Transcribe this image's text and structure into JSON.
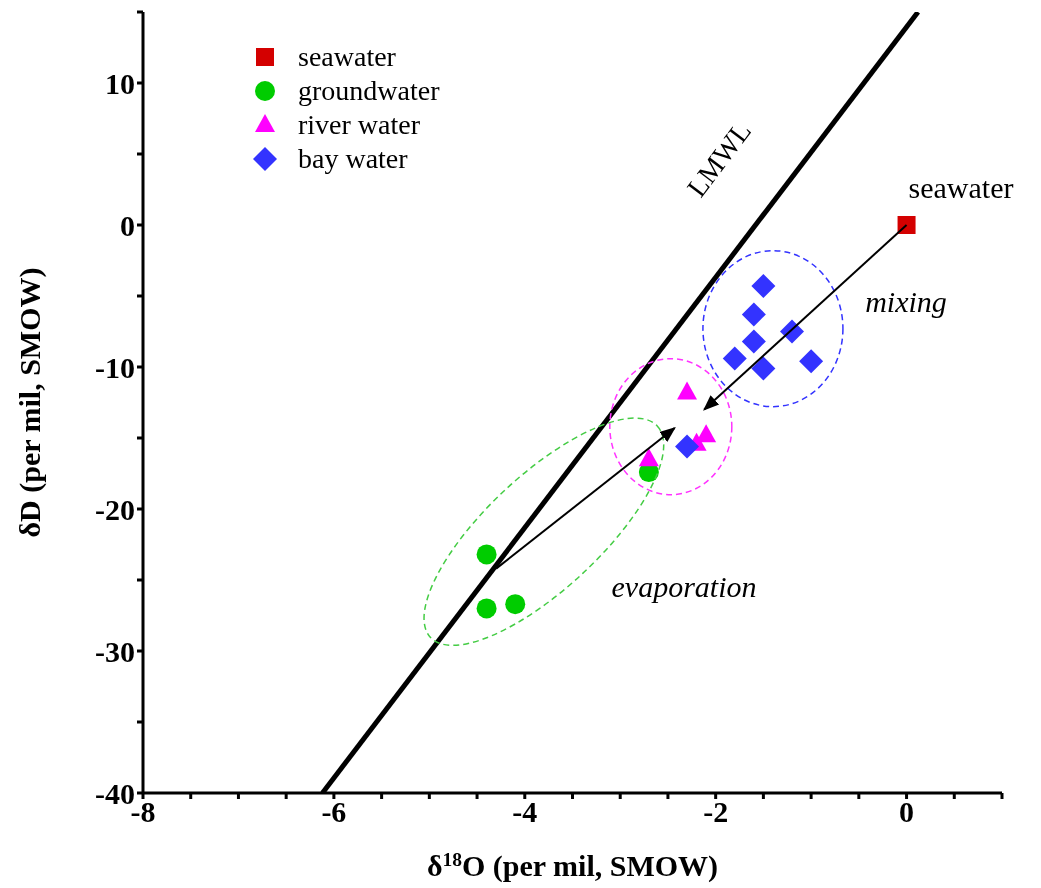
{
  "chart_data": {
    "type": "scatter",
    "xlabel": "δ$^{18}$O (per mil, SMOW)",
    "ylabel": "δD (per mil, SMOW)",
    "xlim": [
      -8,
      1
    ],
    "ylim": [
      -40,
      15
    ],
    "xticks": [
      -8,
      {
        "value": -7.5,
        "label": null
      },
      {
        "value": -7,
        "label": null
      },
      {
        "value": -6.5,
        "label": null
      },
      -6,
      {
        "value": -5.5,
        "label": null
      },
      {
        "value": -5,
        "label": null
      },
      {
        "value": -4.5,
        "label": null
      },
      -4,
      {
        "value": -3.5,
        "label": null
      },
      {
        "value": -3,
        "label": null
      },
      {
        "value": -2.5,
        "label": null
      },
      -2,
      {
        "value": -1.5,
        "label": null
      },
      {
        "value": -1,
        "label": null
      },
      {
        "value": -0.5,
        "label": null
      },
      0,
      {
        "value": 0.5,
        "label": null
      },
      {
        "value": 1,
        "label": null
      }
    ],
    "yticks": [
      -40,
      {
        "value": -35,
        "label": null
      },
      -30,
      {
        "value": -25,
        "label": null
      },
      -20,
      {
        "value": -15,
        "label": null
      },
      -10,
      {
        "value": -5,
        "label": null
      },
      0,
      {
        "value": 5,
        "label": null
      },
      10,
      {
        "value": 15,
        "label": null
      }
    ],
    "grid": false,
    "legend": "top left",
    "series": [
      {
        "name": "seawater",
        "color": "#d40000",
        "marker": "square",
        "x": [
          0
        ],
        "values": [
          0
        ]
      },
      {
        "name": "groundwater",
        "color": "#00cc00",
        "marker": "circle",
        "x": [
          -4.4,
          -4.4,
          -4.1,
          -2.7
        ],
        "values": [
          -23.2,
          -27.0,
          -26.7,
          -17.4
        ]
      },
      {
        "name": "river water",
        "color": "#ff00ff",
        "marker": "triangle",
        "x": [
          -2.7,
          -2.3,
          -2.2,
          -2.1
        ],
        "values": [
          -16.5,
          -11.8,
          -15.4,
          -14.8
        ]
      },
      {
        "name": "bay water",
        "color": "#3333ff",
        "marker": "diamond",
        "x": [
          -2.3,
          -1.8,
          -1.6,
          -1.5,
          -1.6,
          -1.5,
          -1.2,
          -1.0
        ],
        "values": [
          -15.6,
          -9.4,
          -6.3,
          -4.3,
          -8.2,
          -10.1,
          -7.5,
          -9.6
        ]
      },
      {
        "name": "LMWL",
        "type": "line",
        "color": "#000000",
        "marker": "none",
        "x": [
          -6.12,
          0.12
        ],
        "values": [
          -40,
          15
        ]
      }
    ],
    "annotations": [
      {
        "text": "seawater",
        "x": 0,
        "y": 0
      },
      "mixing",
      "evaporation"
    ]
  }
}
